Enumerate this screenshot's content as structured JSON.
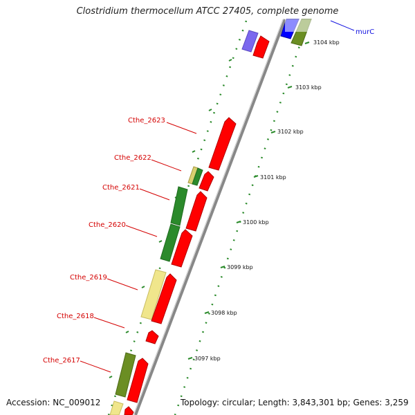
{
  "title": "Clostridium thermocellum ATCC 27405, complete genome",
  "footer": {
    "accession": "Accession: NC_009012",
    "topology": "Topology: circular; Length: 3,843,301 bp; Genes: 3,259"
  },
  "ticks": [
    "3104 kbp",
    "3103 kbp",
    "3102 kbp",
    "3101 kbp",
    "3100 kbp",
    "3099 kbp",
    "3098 kbp",
    "3097 kbp"
  ],
  "gene_labels": [
    "murC",
    "Cthe_2623",
    "Cthe_2622",
    "Cthe_2621",
    "Cthe_2620",
    "Cthe_2619",
    "Cthe_2618",
    "Cthe_2617"
  ],
  "colors": {
    "forward_strand": "#ff0000",
    "backbone": "#888888",
    "tick_dots": "#2a8a2a",
    "label_red": "#d40000",
    "label_blue": "#1010e0",
    "gene_green": "#2b8a2b",
    "gene_olive": "#6b8e23",
    "gene_yellow": "#f0e68c",
    "gene_blue": "#0000ff",
    "gene_purple": "#7b68ee"
  }
}
